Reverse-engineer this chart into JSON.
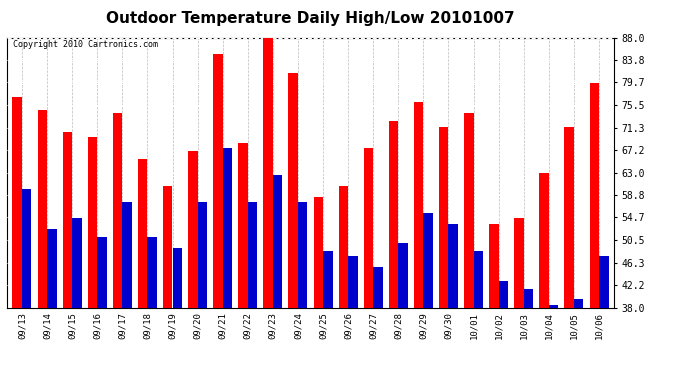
{
  "title": "Outdoor Temperature Daily High/Low 20101007",
  "copyright": "Copyright 2010 Cartronics.com",
  "dates": [
    "09/13",
    "09/14",
    "09/15",
    "09/16",
    "09/17",
    "09/18",
    "09/19",
    "09/20",
    "09/21",
    "09/22",
    "09/23",
    "09/24",
    "09/25",
    "09/26",
    "09/27",
    "09/28",
    "09/29",
    "09/30",
    "10/01",
    "10/02",
    "10/03",
    "10/04",
    "10/05",
    "10/06"
  ],
  "highs": [
    77.0,
    74.5,
    70.5,
    69.5,
    74.0,
    65.5,
    60.5,
    67.0,
    85.0,
    68.5,
    88.0,
    81.5,
    58.5,
    60.5,
    67.5,
    72.5,
    76.0,
    71.5,
    74.0,
    53.5,
    54.5,
    63.0,
    71.5,
    79.5
  ],
  "lows": [
    60.0,
    52.5,
    54.5,
    51.0,
    57.5,
    51.0,
    49.0,
    57.5,
    67.5,
    57.5,
    62.5,
    57.5,
    48.5,
    47.5,
    45.5,
    50.0,
    55.5,
    53.5,
    48.5,
    43.0,
    41.5,
    38.5,
    39.5,
    47.5
  ],
  "high_color": "#ff0000",
  "low_color": "#0000cc",
  "bg_color": "#ffffff",
  "title_fontsize": 11,
  "yticks": [
    38.0,
    42.2,
    46.3,
    50.5,
    54.7,
    58.8,
    63.0,
    67.2,
    71.3,
    75.5,
    79.7,
    83.8,
    88.0
  ],
  "ylim": [
    38.0,
    88.0
  ],
  "bar_width": 0.38
}
